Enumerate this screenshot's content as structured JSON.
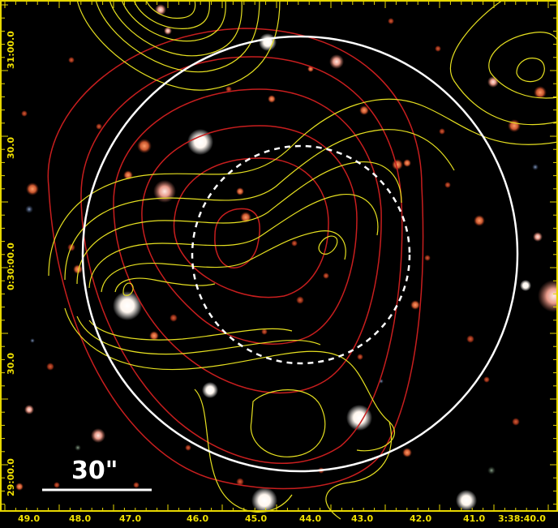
{
  "image": {
    "colors": {
      "background": "#000000",
      "frame": "#e8d800",
      "tick_label": "#f0e000",
      "contour_yellow": "#e6e020",
      "contour_red": "#c81e1e",
      "aperture": "#ffffff",
      "scale_bar": "#ffffff"
    },
    "ra_axis": {
      "ticks": [
        "49.0",
        "48.0",
        "47.0",
        "46.0",
        "45.0",
        "44.0",
        "43.0",
        "42.0",
        "41.0",
        "3:38:40.0"
      ]
    },
    "dec_axis": {
      "ticks": [
        "31:00.0",
        "30.0",
        "0:30:00.0",
        "30.0",
        "29:00.0"
      ]
    },
    "scale_bar": {
      "label": "30\""
    }
  }
}
